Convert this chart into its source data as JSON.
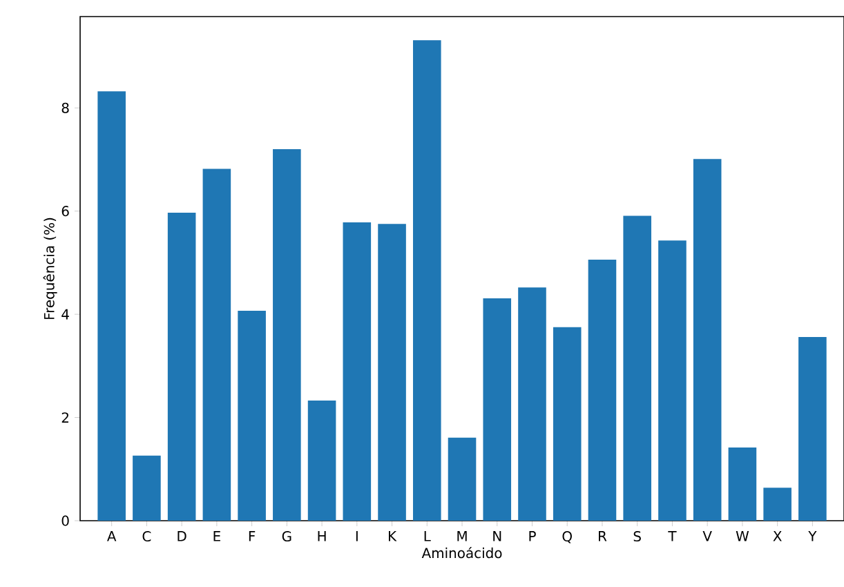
{
  "chart_data": {
    "type": "bar",
    "xlabel": "Aminoácido",
    "ylabel": "Frequência (%)",
    "categories": [
      "A",
      "C",
      "D",
      "E",
      "F",
      "G",
      "H",
      "I",
      "K",
      "L",
      "M",
      "N",
      "P",
      "Q",
      "R",
      "S",
      "T",
      "V",
      "W",
      "X",
      "Y"
    ],
    "values": [
      8.32,
      1.26,
      5.97,
      6.82,
      4.07,
      7.2,
      2.33,
      5.78,
      5.75,
      9.31,
      1.61,
      4.31,
      4.52,
      3.75,
      5.06,
      5.91,
      5.43,
      7.01,
      1.42,
      0.64,
      3.56
    ],
    "color": "#1f77b4",
    "ylim": [
      0,
      9.77
    ],
    "yticks": [
      0,
      2,
      4,
      6,
      8
    ]
  }
}
